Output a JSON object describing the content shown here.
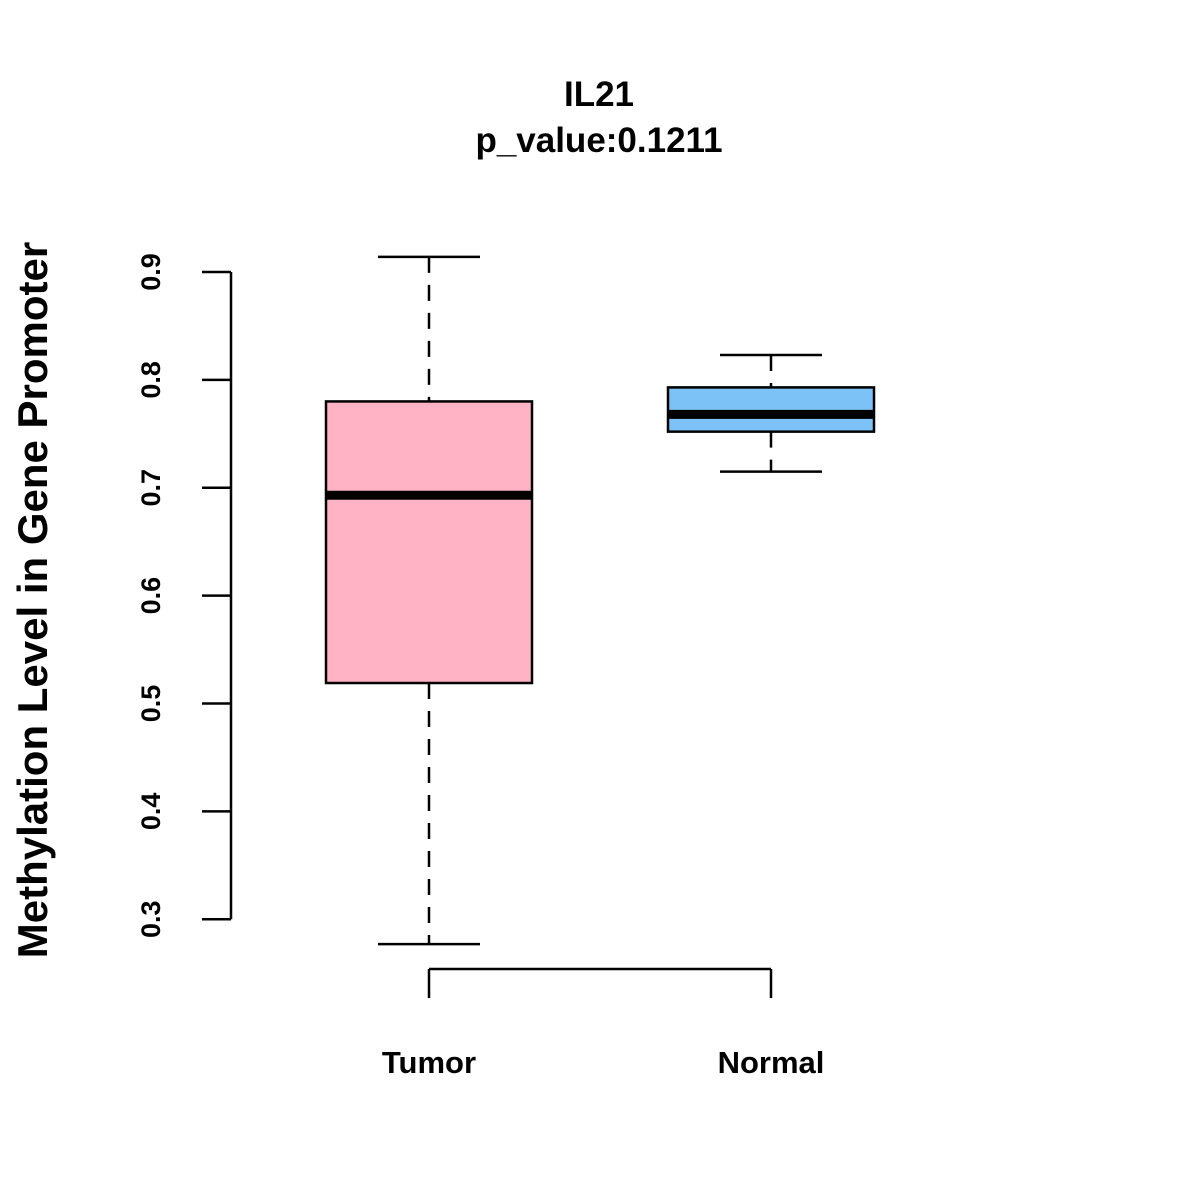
{
  "chart_data": {
    "type": "box",
    "title": "IL21",
    "subtitle": "p_value:0.1211",
    "ylabel": "Methylation Level in Gene Promoter",
    "xlabel": "",
    "ylim": [
      0.253,
      0.925
    ],
    "yticks": [
      0.3,
      0.4,
      0.5,
      0.6,
      0.7,
      0.8,
      0.9
    ],
    "ytick_labels": [
      "0.3",
      "0.4",
      "0.5",
      "0.6",
      "0.7",
      "0.8",
      "0.9"
    ],
    "categories": [
      "Tumor",
      "Normal"
    ],
    "boxes": [
      {
        "name": "Tumor",
        "min": 0.277,
        "q1": 0.519,
        "median": 0.693,
        "q3": 0.78,
        "max": 0.914,
        "color": "#FFB3C4"
      },
      {
        "name": "Normal",
        "min": 0.715,
        "q1": 0.752,
        "median": 0.768,
        "q3": 0.793,
        "max": 0.823,
        "color": "#7CC2F7"
      }
    ],
    "grid": false,
    "legend": "none"
  }
}
